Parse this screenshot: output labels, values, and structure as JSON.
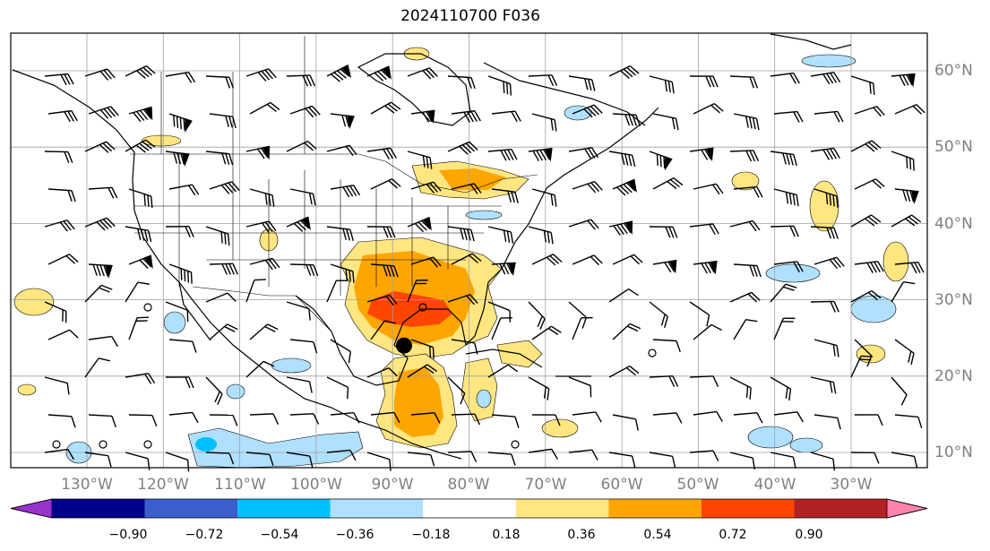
{
  "title": "2024110700 F036",
  "latitude_labels": [
    "60°N",
    "50°N",
    "40°N",
    "30°N",
    "20°N",
    "10°N"
  ],
  "longitude_labels": [
    "130°W",
    "120°W",
    "110°W",
    "100°W",
    "90°W",
    "80°W",
    "70°W",
    "60°W",
    "50°W",
    "40°W",
    "30°W"
  ],
  "colorbar": {
    "labels": [
      "−0.90",
      "−0.72",
      "−0.54",
      "−0.36",
      "−0.18",
      "0.18",
      "0.36",
      "0.54",
      "0.72",
      "0.90"
    ],
    "colors": [
      "#9932cc",
      "#00008b",
      "#3a5fcd",
      "#00bfff",
      "#b0e0ff",
      "#ffffff",
      "#ffe680",
      "#ffa500",
      "#ff4500",
      "#b22222",
      "#ff82ab"
    ]
  },
  "storm_marker": {
    "lon": -88.5,
    "lat": 24.0
  },
  "colors": {
    "grid": "#a0a0a0",
    "coast": "#000000"
  }
}
